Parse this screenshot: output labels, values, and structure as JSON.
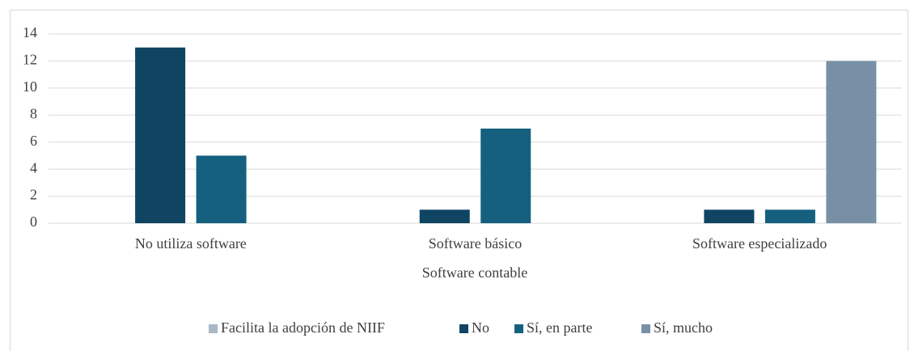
{
  "chart_data": {
    "type": "bar",
    "x_label": "Software contable",
    "categories": [
      "No utiliza software",
      "Software básico",
      "Software especializado"
    ],
    "series": [
      {
        "name": "Facilita la adopción de NIIF",
        "color": "#a9b8c6",
        "values": [
          null,
          null,
          null
        ]
      },
      {
        "name": "No",
        "color": "#0f4563",
        "values": [
          13,
          1,
          1
        ]
      },
      {
        "name": "Sí, en parte",
        "color": "#15607f",
        "values": [
          5,
          7,
          1
        ]
      },
      {
        "name": "Sí, mucho",
        "color": "#7890a6",
        "values": [
          0,
          0,
          12
        ]
      }
    ],
    "ylim": [
      0,
      14
    ],
    "yticks": [
      0,
      2,
      4,
      6,
      8,
      10,
      12,
      14
    ],
    "grid": true,
    "legend": "bottom"
  }
}
